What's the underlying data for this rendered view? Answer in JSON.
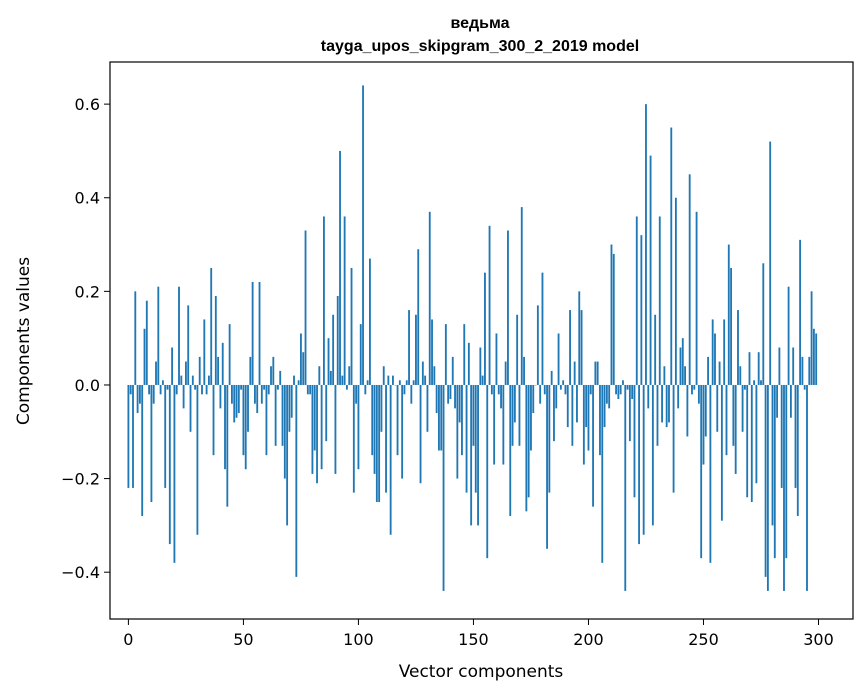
{
  "chart_data": {
    "type": "bar",
    "title": "ведьма",
    "subtitle": "tayga_upos_skipgram_300_2_2019 model",
    "xlabel": "Vector components",
    "ylabel": "Components values",
    "xlim": [
      -8,
      315
    ],
    "ylim": [
      -0.5,
      0.69
    ],
    "xticks": [
      0,
      50,
      100,
      150,
      200,
      250,
      300
    ],
    "yticks": [
      -0.4,
      -0.2,
      0.0,
      0.2,
      0.4,
      0.6
    ],
    "ytick_labels": [
      "−0.4",
      "−0.2",
      "0.0",
      "0.2",
      "0.4",
      "0.6"
    ],
    "xtick_labels": [
      "0",
      "50",
      "100",
      "150",
      "200",
      "250",
      "300"
    ],
    "grid": false,
    "bar_color": "#1f77b4",
    "values": [
      -0.22,
      -0.02,
      -0.22,
      0.2,
      -0.06,
      -0.04,
      -0.28,
      0.12,
      0.18,
      -0.02,
      -0.25,
      -0.04,
      0.05,
      0.21,
      -0.02,
      0.01,
      -0.22,
      -0.01,
      -0.34,
      0.08,
      -0.38,
      -0.02,
      0.21,
      0.02,
      -0.05,
      0.05,
      0.17,
      -0.1,
      0.02,
      -0.01,
      -0.32,
      0.06,
      -0.02,
      0.14,
      -0.02,
      0.02,
      0.25,
      -0.15,
      0.19,
      0.06,
      -0.05,
      0.09,
      -0.18,
      -0.26,
      0.13,
      -0.04,
      -0.08,
      -0.07,
      -0.06,
      -0.01,
      -0.15,
      -0.18,
      -0.1,
      0.06,
      0.22,
      -0.04,
      -0.06,
      0.22,
      -0.04,
      -0.01,
      -0.15,
      -0.02,
      0.04,
      0.06,
      -0.13,
      -0.01,
      0.03,
      -0.13,
      -0.2,
      -0.3,
      -0.1,
      -0.07,
      0.02,
      -0.41,
      0.01,
      0.11,
      0.07,
      0.33,
      -0.02,
      -0.02,
      -0.19,
      -0.14,
      -0.21,
      0.04,
      -0.18,
      0.36,
      -0.12,
      0.1,
      0.03,
      0.15,
      -0.19,
      0.19,
      0.5,
      0.02,
      0.36,
      -0.01,
      0.04,
      0.25,
      -0.23,
      -0.04,
      -0.18,
      0.13,
      0.64,
      -0.02,
      0.01,
      0.27,
      -0.15,
      -0.19,
      -0.25,
      -0.25,
      -0.1,
      0.04,
      -0.23,
      0.02,
      -0.32,
      0.02,
      0.0,
      -0.15,
      0.01,
      -0.2,
      -0.02,
      0.01,
      0.16,
      -0.04,
      0.01,
      0.15,
      0.29,
      -0.21,
      0.05,
      0.02,
      -0.1,
      0.37,
      0.14,
      0.04,
      -0.06,
      -0.14,
      -0.14,
      -0.44,
      0.13,
      -0.04,
      -0.03,
      0.06,
      -0.05,
      -0.2,
      -0.08,
      -0.15,
      0.13,
      -0.23,
      0.09,
      -0.3,
      -0.13,
      -0.23,
      -0.3,
      0.08,
      0.02,
      0.24,
      -0.37,
      0.34,
      -0.02,
      -0.17,
      0.11,
      -0.02,
      -0.05,
      -0.17,
      0.05,
      0.33,
      -0.28,
      -0.13,
      -0.08,
      0.15,
      -0.13,
      0.38,
      0.06,
      -0.27,
      -0.24,
      -0.14,
      -0.06,
      0.0,
      0.17,
      -0.04,
      0.24,
      -0.02,
      -0.35,
      -0.23,
      0.03,
      -0.12,
      -0.05,
      0.11,
      -0.01,
      0.01,
      -0.02,
      -0.09,
      0.16,
      -0.13,
      0.05,
      -0.08,
      0.2,
      0.16,
      -0.17,
      -0.09,
      -0.14,
      -0.02,
      -0.26,
      0.05,
      0.05,
      -0.15,
      -0.38,
      -0.09,
      -0.04,
      -0.05,
      0.3,
      0.28,
      -0.02,
      -0.03,
      -0.02,
      0.01,
      -0.44,
      -0.01,
      -0.12,
      -0.03,
      -0.24,
      0.36,
      -0.34,
      0.32,
      -0.32,
      0.6,
      -0.05,
      0.49,
      -0.3,
      0.15,
      -0.13,
      0.36,
      -0.08,
      0.04,
      -0.09,
      -0.08,
      0.55,
      -0.23,
      0.4,
      -0.05,
      0.08,
      0.1,
      0.04,
      -0.11,
      0.45,
      -0.02,
      -0.01,
      0.37,
      -0.04,
      -0.37,
      -0.17,
      -0.11,
      0.06,
      -0.38,
      0.14,
      0.11,
      -0.1,
      0.05,
      -0.29,
      0.14,
      -0.15,
      0.3,
      0.25,
      -0.13,
      -0.19,
      0.16,
      0.04,
      -0.1,
      -0.01,
      -0.24,
      0.07,
      -0.25,
      0.01,
      -0.21,
      0.07,
      0.01,
      0.26,
      -0.41,
      -0.44,
      0.52,
      -0.3,
      -0.37,
      -0.07,
      0.08,
      -0.22,
      -0.44,
      -0.37,
      0.21,
      -0.07,
      0.08,
      -0.22,
      -0.28,
      0.31,
      0.06,
      -0.01,
      -0.44,
      0.06,
      0.2,
      0.12,
      0.11
    ]
  }
}
